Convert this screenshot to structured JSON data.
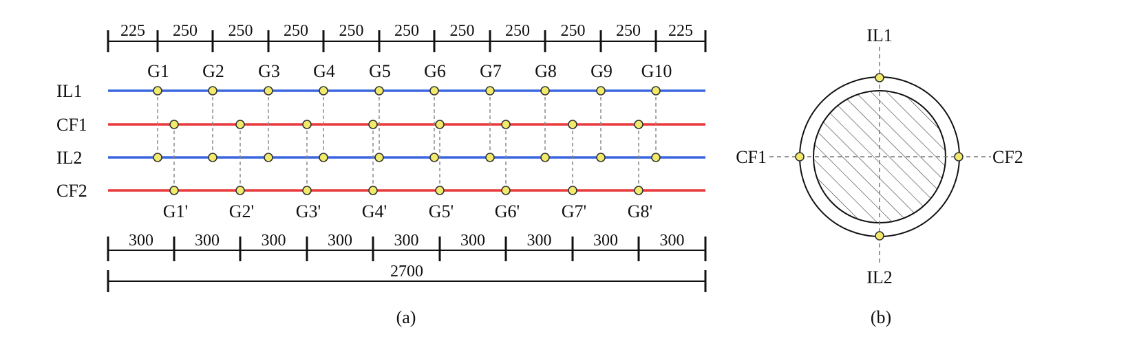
{
  "colors": {
    "blue_line": "#3a66e0",
    "red_line": "#e8393b",
    "node_fill": "#f2ea6a",
    "node_stroke": "#333333",
    "dash": "#8a8a8a",
    "ink": "#111111"
  },
  "panel_a": {
    "caption": "(a)",
    "top_dims": [
      "225",
      "250",
      "250",
      "250",
      "250",
      "250",
      "250",
      "250",
      "250",
      "250",
      "225"
    ],
    "bottom_dims": [
      "300",
      "300",
      "300",
      "300",
      "300",
      "300",
      "300",
      "300",
      "300"
    ],
    "total_dim": "2700",
    "lines": [
      {
        "label": "IL1",
        "color": "blue"
      },
      {
        "label": "CF1",
        "color": "red"
      },
      {
        "label": "IL2",
        "color": "blue"
      },
      {
        "label": "CF2",
        "color": "red"
      }
    ],
    "top_gauges": [
      "G1",
      "G2",
      "G3",
      "G4",
      "G5",
      "G6",
      "G7",
      "G8",
      "G9",
      "G10"
    ],
    "bottom_gauges": [
      "G1'",
      "G2'",
      "G3'",
      "G4'",
      "G5'",
      "G6'",
      "G7'",
      "G8'"
    ]
  },
  "panel_b": {
    "caption": "(b)",
    "labels": {
      "top": "IL1",
      "bottom": "IL2",
      "left": "CF1",
      "right": "CF2"
    }
  }
}
